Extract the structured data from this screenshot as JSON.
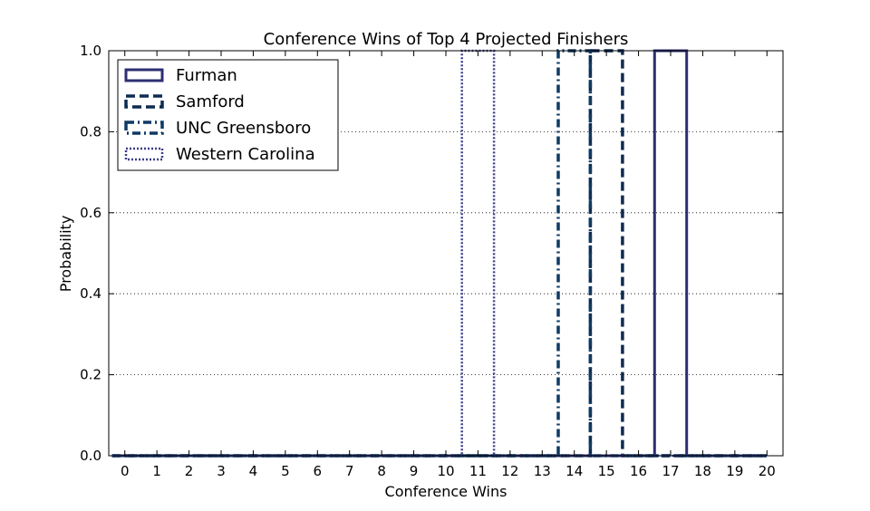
{
  "chart_data": {
    "type": "step",
    "title": "Conference Wins of Top 4 Projected Finishers",
    "xlabel": "Conference Wins",
    "ylabel": "Probability",
    "xlim": [
      -0.5,
      20.5
    ],
    "ylim": [
      0.0,
      1.0
    ],
    "x_ticks": [
      0,
      1,
      2,
      3,
      4,
      5,
      6,
      7,
      8,
      9,
      10,
      11,
      12,
      13,
      14,
      15,
      16,
      17,
      18,
      19,
      20
    ],
    "y_ticks": [
      0.0,
      0.2,
      0.4,
      0.6,
      0.8,
      1.0
    ],
    "y_tick_labels": [
      "0.0",
      "0.2",
      "0.4",
      "0.6",
      "0.8",
      "1.0"
    ],
    "grid": "horizontal-dotted",
    "legend_position": "top-left",
    "series": [
      {
        "name": "Furman",
        "style": "solid",
        "color": "#2e2e73",
        "mode_wins": 17,
        "probability": 1.0
      },
      {
        "name": "Samford",
        "style": "dashed",
        "color": "#0d2b52",
        "mode_wins": 15,
        "probability": 1.0
      },
      {
        "name": "UNC Greensboro",
        "style": "dashdot",
        "color": "#0f3a63",
        "mode_wins": 14,
        "probability": 1.0
      },
      {
        "name": "Western Carolina",
        "style": "dotted",
        "color": "#3d3d8a",
        "mode_wins": 11,
        "probability": 1.0
      }
    ]
  }
}
